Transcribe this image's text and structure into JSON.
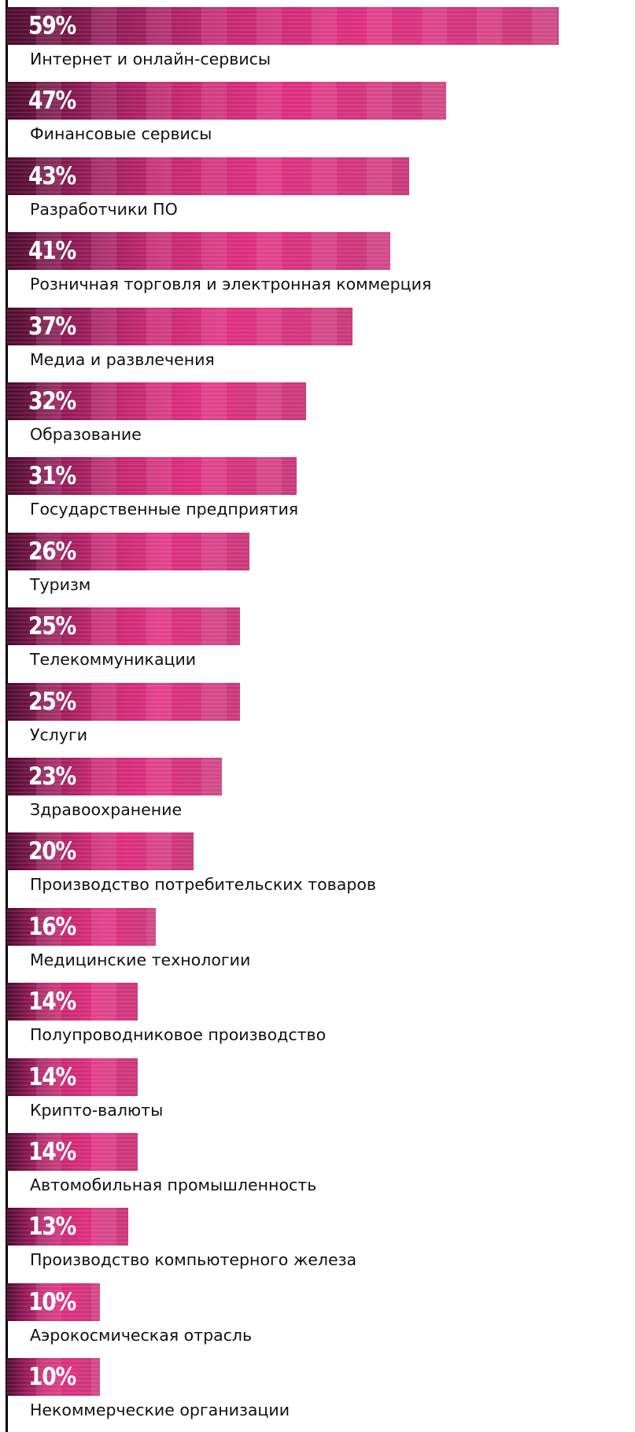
{
  "chart_data": {
    "type": "bar",
    "orientation": "horizontal",
    "categories": [
      "Интернет и онлайн-сервисы",
      "Финансовые сервисы",
      "Разработчики ПО",
      "Розничная торговля и электронная коммерция",
      "Медиа и развлечения",
      "Образование",
      "Государственные предприятия",
      "Туризм",
      "Телекоммуникации",
      "Услуги",
      "Здравоохранение",
      "Производство потребительских товаров",
      "Медицинские технологии",
      "Полупроводниковое производство",
      "Крипто-валюты",
      "Автомобильная промышленность",
      "Производство компьютерного железа",
      "Аэрокосмическая отрасль",
      "Некоммерческие организации"
    ],
    "values": [
      59,
      47,
      43,
      41,
      37,
      32,
      31,
      26,
      25,
      25,
      23,
      20,
      16,
      14,
      14,
      14,
      13,
      10,
      10
    ],
    "value_labels": [
      "59%",
      "47%",
      "43%",
      "41%",
      "37%",
      "32%",
      "31%",
      "26%",
      "25%",
      "25%",
      "23%",
      "20%",
      "16%",
      "14%",
      "14%",
      "14%",
      "13%",
      "10%",
      "10%"
    ],
    "unit": "%",
    "xlim": [
      0,
      59
    ],
    "grid": false,
    "colors": {
      "bar_dark": "#4a0c2c",
      "bar_bright": "#de2f7f",
      "axis": "#000000"
    }
  }
}
